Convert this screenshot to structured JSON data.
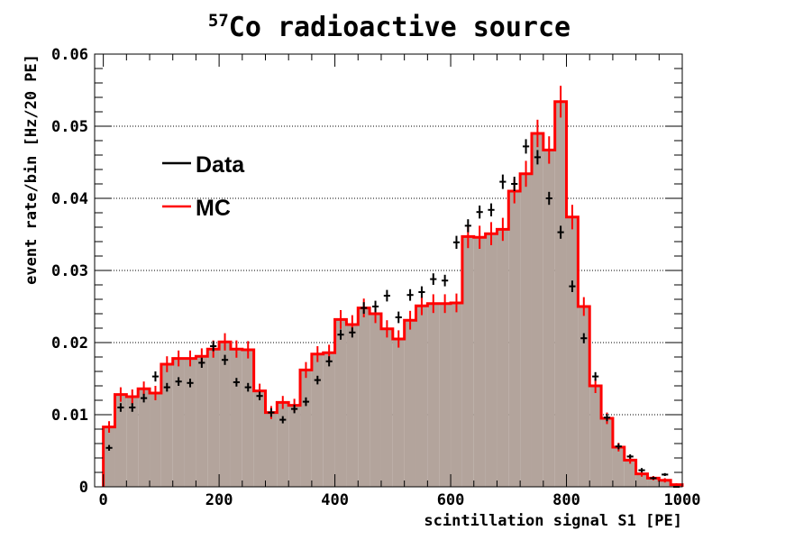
{
  "chart_data": {
    "type": "bar",
    "title_superscript": "57",
    "title_main": "Co radioactive source",
    "xlabel": "scintillation signal S1 [PE]",
    "ylabel": "event rate/bin [Hz/20 PE]",
    "xlim": [
      -15,
      1000
    ],
    "ylim": [
      0,
      0.06
    ],
    "x_ticks": [
      0,
      200,
      400,
      600,
      800,
      1000
    ],
    "y_ticks": [
      0,
      0.01,
      0.02,
      0.03,
      0.04,
      0.05,
      0.06
    ],
    "x_tick_labels": [
      "0",
      "200",
      "400",
      "600",
      "800",
      "1000"
    ],
    "y_tick_labels": [
      "0",
      "0.01",
      "0.02",
      "0.03",
      "0.04",
      "0.05",
      "0.06"
    ],
    "grid": "horizontal dotted",
    "legend": {
      "placement": "top-left"
    },
    "bin_width": 20,
    "bin_low_edges": [
      0,
      20,
      40,
      60,
      80,
      100,
      120,
      140,
      160,
      180,
      200,
      220,
      240,
      260,
      280,
      300,
      320,
      340,
      360,
      380,
      400,
      420,
      440,
      460,
      480,
      500,
      520,
      540,
      560,
      580,
      600,
      620,
      640,
      660,
      680,
      700,
      720,
      740,
      760,
      780,
      800,
      820,
      840,
      860,
      880,
      900,
      920,
      940,
      960,
      980
    ],
    "series": [
      {
        "name": "Data",
        "color": "#000000",
        "style": "points with error bars",
        "values": [
          0.0054,
          0.011,
          0.011,
          0.0123,
          0.0153,
          0.0138,
          0.0146,
          0.0144,
          0.0172,
          0.0195,
          0.0176,
          0.0145,
          0.0138,
          0.0126,
          0.0103,
          0.0093,
          0.0108,
          0.0118,
          0.0148,
          0.0174,
          0.0211,
          0.0214,
          0.0248,
          0.025,
          0.0265,
          0.0235,
          0.0266,
          0.027,
          0.0288,
          0.0286,
          0.0339,
          0.0362,
          0.0381,
          0.0384,
          0.0423,
          0.042,
          0.0472,
          0.0457,
          0.04,
          0.0353,
          0.0278,
          0.0206,
          0.0153,
          0.0096,
          0.0056,
          0.0042,
          0.0023,
          0.0012,
          0.0017,
          0.0
        ],
        "errors": [
          0.0004,
          0.0006,
          0.0006,
          0.0006,
          0.0007,
          0.0006,
          0.0006,
          0.0006,
          0.0007,
          0.0007,
          0.0007,
          0.0006,
          0.0006,
          0.0006,
          0.0006,
          0.0005,
          0.0006,
          0.0006,
          0.0006,
          0.0007,
          0.0007,
          0.0007,
          0.0008,
          0.0008,
          0.0008,
          0.0008,
          0.0008,
          0.0008,
          0.0008,
          0.0008,
          0.0009,
          0.0009,
          0.0009,
          0.0009,
          0.001,
          0.001,
          0.001,
          0.001,
          0.0009,
          0.0009,
          0.0008,
          0.0007,
          0.0006,
          0.0005,
          0.0004,
          0.0003,
          0.0003,
          0.0002,
          0.0002,
          0.0001
        ]
      },
      {
        "name": "MC",
        "color": "#ff0000",
        "fill": "#b3a49c",
        "style": "filled histogram with error bars",
        "values": [
          0.0083,
          0.0128,
          0.0125,
          0.0136,
          0.013,
          0.017,
          0.0178,
          0.0178,
          0.0181,
          0.0191,
          0.0201,
          0.0191,
          0.019,
          0.0133,
          0.0103,
          0.0117,
          0.0113,
          0.0162,
          0.0184,
          0.0186,
          0.0232,
          0.0225,
          0.0248,
          0.024,
          0.0219,
          0.0205,
          0.0231,
          0.0251,
          0.0254,
          0.0254,
          0.0255,
          0.0347,
          0.0346,
          0.0351,
          0.0357,
          0.041,
          0.0434,
          0.049,
          0.0467,
          0.0534,
          0.0374,
          0.025,
          0.014,
          0.0095,
          0.0055,
          0.0037,
          0.0018,
          0.0012,
          0.0009,
          0.0003
        ],
        "errors": [
          0.0008,
          0.001,
          0.001,
          0.001,
          0.001,
          0.0011,
          0.0011,
          0.0011,
          0.0011,
          0.0012,
          0.0012,
          0.0012,
          0.0012,
          0.001,
          0.0009,
          0.0009,
          0.0009,
          0.0011,
          0.0011,
          0.0011,
          0.0013,
          0.0013,
          0.0013,
          0.0013,
          0.0012,
          0.0012,
          0.0013,
          0.0013,
          0.0013,
          0.0013,
          0.0013,
          0.0016,
          0.0016,
          0.0016,
          0.0016,
          0.0017,
          0.0018,
          0.0019,
          0.0019,
          0.0022,
          0.0017,
          0.0013,
          0.001,
          0.0008,
          0.0006,
          0.0005,
          0.0004,
          0.0003,
          0.0003,
          0.0002
        ]
      }
    ]
  }
}
